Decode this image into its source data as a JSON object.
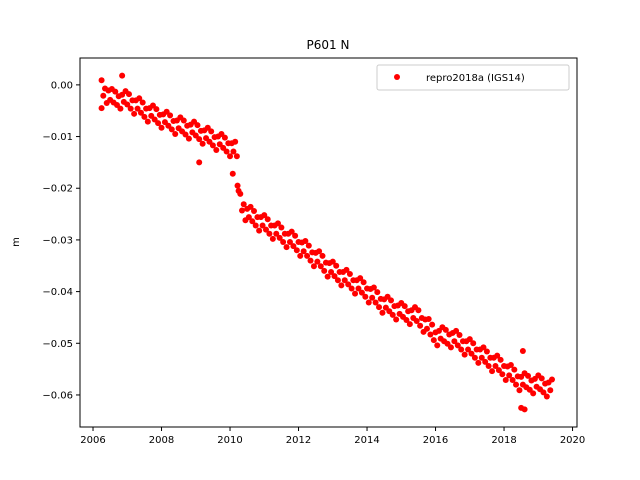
{
  "chart_data": {
    "type": "scatter",
    "title": "P601 N",
    "xlabel": "",
    "ylabel": "m",
    "xlim": [
      2005.62,
      2020.13
    ],
    "ylim": [
      -0.0662,
      0.0052
    ],
    "xticks": [
      2006,
      2008,
      2010,
      2012,
      2014,
      2016,
      2018,
      2020
    ],
    "xtick_labels": [
      "2006",
      "2008",
      "2010",
      "2012",
      "2014",
      "2016",
      "2018",
      "2020"
    ],
    "yticks": [
      0.0,
      -0.01,
      -0.02,
      -0.03,
      -0.04,
      -0.05,
      -0.06
    ],
    "ytick_labels": [
      "0.00",
      "−0.01",
      "−0.02",
      "−0.03",
      "−0.04",
      "−0.05",
      "−0.06"
    ],
    "grid": false,
    "legend": {
      "placement": "top-right",
      "entries": [
        "repro2018a (IGS14)"
      ]
    },
    "series": [
      {
        "name": "repro2018a (IGS14)",
        "color": "#ff0000",
        "marker": "circle",
        "points": [
          [
            2006.25,
            0.0009
          ],
          [
            2006.3,
            -0.0021
          ],
          [
            2006.35,
            -0.0007
          ],
          [
            2006.4,
            -0.0035
          ],
          [
            2006.45,
            -0.0011
          ],
          [
            2006.5,
            -0.0029
          ],
          [
            2006.55,
            -0.0008
          ],
          [
            2006.6,
            -0.0034
          ],
          [
            2006.65,
            -0.0013
          ],
          [
            2006.7,
            -0.0039
          ],
          [
            2006.75,
            -0.0022
          ],
          [
            2006.8,
            -0.0046
          ],
          [
            2006.85,
            -0.0019
          ],
          [
            2006.9,
            -0.0033
          ],
          [
            2006.95,
            -0.0012
          ],
          [
            2007.0,
            -0.0038
          ],
          [
            2007.05,
            -0.0018
          ],
          [
            2007.1,
            -0.0046
          ],
          [
            2007.15,
            -0.003
          ],
          [
            2007.2,
            -0.0056
          ],
          [
            2007.25,
            -0.003
          ],
          [
            2007.3,
            -0.0046
          ],
          [
            2007.35,
            -0.0026
          ],
          [
            2007.4,
            -0.0054
          ],
          [
            2007.45,
            -0.0034
          ],
          [
            2007.5,
            -0.0062
          ],
          [
            2007.55,
            -0.0046
          ],
          [
            2007.6,
            -0.0071
          ],
          [
            2007.65,
            -0.0045
          ],
          [
            2007.7,
            -0.006
          ],
          [
            2007.75,
            -0.004
          ],
          [
            2007.8,
            -0.0067
          ],
          [
            2007.85,
            -0.0047
          ],
          [
            2007.9,
            -0.0074
          ],
          [
            2007.95,
            -0.0058
          ],
          [
            2008.0,
            -0.0083
          ],
          [
            2008.05,
            -0.0057
          ],
          [
            2008.1,
            -0.0072
          ],
          [
            2008.15,
            -0.0052
          ],
          [
            2008.2,
            -0.0079
          ],
          [
            2008.25,
            -0.0059
          ],
          [
            2008.3,
            -0.0086
          ],
          [
            2008.35,
            -0.007
          ],
          [
            2008.4,
            -0.0095
          ],
          [
            2008.45,
            -0.0069
          ],
          [
            2008.5,
            -0.0084
          ],
          [
            2008.55,
            -0.0063
          ],
          [
            2008.6,
            -0.009
          ],
          [
            2008.65,
            -0.0069
          ],
          [
            2008.7,
            -0.0096
          ],
          [
            2008.75,
            -0.0079
          ],
          [
            2008.8,
            -0.0104
          ],
          [
            2008.85,
            -0.0077
          ],
          [
            2008.9,
            -0.0092
          ],
          [
            2008.95,
            -0.0071
          ],
          [
            2009.0,
            -0.0098
          ],
          [
            2009.05,
            -0.0078
          ],
          [
            2009.1,
            -0.0105
          ],
          [
            2009.15,
            -0.0089
          ],
          [
            2009.2,
            -0.0114
          ],
          [
            2009.25,
            -0.0088
          ],
          [
            2009.3,
            -0.0103
          ],
          [
            2009.35,
            -0.0083
          ],
          [
            2009.4,
            -0.011
          ],
          [
            2009.45,
            -0.009
          ],
          [
            2009.5,
            -0.0117
          ],
          [
            2009.55,
            -0.0101
          ],
          [
            2009.6,
            -0.0126
          ],
          [
            2009.65,
            -0.01
          ],
          [
            2009.7,
            -0.0115
          ],
          [
            2009.75,
            -0.0095
          ],
          [
            2009.8,
            -0.0122
          ],
          [
            2009.85,
            -0.0102
          ],
          [
            2009.9,
            -0.0129
          ],
          [
            2009.95,
            -0.0113
          ],
          [
            2010.0,
            -0.0138
          ],
          [
            2010.05,
            -0.0113
          ],
          [
            2010.1,
            -0.0129
          ],
          [
            2010.15,
            -0.011
          ],
          [
            2010.2,
            -0.0138
          ],
          [
            2010.08,
            -0.0172
          ],
          [
            2010.22,
            -0.0195
          ],
          [
            2010.25,
            -0.0205
          ],
          [
            2010.3,
            -0.0211
          ],
          [
            2010.35,
            -0.0243
          ],
          [
            2010.4,
            -0.0231
          ],
          [
            2010.45,
            -0.0262
          ],
          [
            2010.5,
            -0.024
          ],
          [
            2010.55,
            -0.0256
          ],
          [
            2010.6,
            -0.0236
          ],
          [
            2010.65,
            -0.0264
          ],
          [
            2010.7,
            -0.0244
          ],
          [
            2010.75,
            -0.0272
          ],
          [
            2010.8,
            -0.0256
          ],
          [
            2010.85,
            -0.0282
          ],
          [
            2010.9,
            -0.0256
          ],
          [
            2010.95,
            -0.0272
          ],
          [
            2011.0,
            -0.0252
          ],
          [
            2011.05,
            -0.028
          ],
          [
            2011.1,
            -0.026
          ],
          [
            2011.15,
            -0.0288
          ],
          [
            2011.2,
            -0.0272
          ],
          [
            2011.25,
            -0.0298
          ],
          [
            2011.3,
            -0.0272
          ],
          [
            2011.35,
            -0.0288
          ],
          [
            2011.4,
            -0.0268
          ],
          [
            2011.45,
            -0.0296
          ],
          [
            2011.5,
            -0.0276
          ],
          [
            2011.55,
            -0.0304
          ],
          [
            2011.6,
            -0.0288
          ],
          [
            2011.65,
            -0.0314
          ],
          [
            2011.7,
            -0.0288
          ],
          [
            2011.75,
            -0.0304
          ],
          [
            2011.8,
            -0.0284
          ],
          [
            2011.85,
            -0.0312
          ],
          [
            2011.9,
            -0.0292
          ],
          [
            2011.95,
            -0.032
          ],
          [
            2012.0,
            -0.0304
          ],
          [
            2012.05,
            -0.0331
          ],
          [
            2012.1,
            -0.0305
          ],
          [
            2012.15,
            -0.0322
          ],
          [
            2012.2,
            -0.0302
          ],
          [
            2012.25,
            -0.0331
          ],
          [
            2012.3,
            -0.0311
          ],
          [
            2012.35,
            -0.034
          ],
          [
            2012.4,
            -0.0324
          ],
          [
            2012.45,
            -0.0351
          ],
          [
            2012.5,
            -0.0325
          ],
          [
            2012.55,
            -0.0342
          ],
          [
            2012.6,
            -0.0322
          ],
          [
            2012.65,
            -0.0351
          ],
          [
            2012.7,
            -0.0331
          ],
          [
            2012.75,
            -0.036
          ],
          [
            2012.8,
            -0.0344
          ],
          [
            2012.85,
            -0.0371
          ],
          [
            2012.9,
            -0.0345
          ],
          [
            2012.95,
            -0.0362
          ],
          [
            2013.0,
            -0.0342
          ],
          [
            2013.05,
            -0.037
          ],
          [
            2013.1,
            -0.035
          ],
          [
            2013.15,
            -0.0378
          ],
          [
            2013.2,
            -0.0362
          ],
          [
            2013.25,
            -0.0388
          ],
          [
            2013.3,
            -0.0362
          ],
          [
            2013.35,
            -0.0378
          ],
          [
            2013.4,
            -0.0358
          ],
          [
            2013.45,
            -0.0386
          ],
          [
            2013.5,
            -0.0366
          ],
          [
            2013.55,
            -0.0394
          ],
          [
            2013.6,
            -0.0378
          ],
          [
            2013.65,
            -0.0404
          ],
          [
            2013.7,
            -0.0378
          ],
          [
            2013.75,
            -0.0394
          ],
          [
            2013.8,
            -0.0374
          ],
          [
            2013.85,
            -0.0402
          ],
          [
            2013.9,
            -0.0382
          ],
          [
            2013.95,
            -0.041
          ],
          [
            2014.0,
            -0.0394
          ],
          [
            2014.05,
            -0.0421
          ],
          [
            2014.1,
            -0.0395
          ],
          [
            2014.15,
            -0.0412
          ],
          [
            2014.2,
            -0.0392
          ],
          [
            2014.25,
            -0.0421
          ],
          [
            2014.3,
            -0.0401
          ],
          [
            2014.35,
            -0.043
          ],
          [
            2014.4,
            -0.0414
          ],
          [
            2014.45,
            -0.0441
          ],
          [
            2014.5,
            -0.0415
          ],
          [
            2014.55,
            -0.0431
          ],
          [
            2014.6,
            -0.041
          ],
          [
            2014.65,
            -0.0438
          ],
          [
            2014.7,
            -0.0417
          ],
          [
            2014.75,
            -0.0445
          ],
          [
            2014.8,
            -0.0428
          ],
          [
            2014.85,
            -0.0454
          ],
          [
            2014.9,
            -0.0427
          ],
          [
            2014.95,
            -0.0443
          ],
          [
            2015.0,
            -0.0422
          ],
          [
            2015.05,
            -0.0449
          ],
          [
            2015.1,
            -0.0428
          ],
          [
            2015.15,
            -0.0455
          ],
          [
            2015.2,
            -0.0438
          ],
          [
            2015.25,
            -0.0463
          ],
          [
            2015.3,
            -0.0436
          ],
          [
            2015.35,
            -0.0451
          ],
          [
            2015.4,
            -0.043
          ],
          [
            2015.45,
            -0.0457
          ],
          [
            2015.5,
            -0.0436
          ],
          [
            2015.55,
            -0.0466
          ],
          [
            2015.6,
            -0.0451
          ],
          [
            2015.65,
            -0.0478
          ],
          [
            2015.7,
            -0.0454
          ],
          [
            2015.75,
            -0.0472
          ],
          [
            2015.8,
            -0.0453
          ],
          [
            2015.85,
            -0.0483
          ],
          [
            2015.9,
            -0.0464
          ],
          [
            2015.95,
            -0.0494
          ],
          [
            2016.0,
            -0.0479
          ],
          [
            2016.05,
            -0.0504
          ],
          [
            2016.1,
            -0.0476
          ],
          [
            2016.15,
            -0.0491
          ],
          [
            2016.2,
            -0.0469
          ],
          [
            2016.25,
            -0.0496
          ],
          [
            2016.3,
            -0.0474
          ],
          [
            2016.35,
            -0.0501
          ],
          [
            2016.4,
            -0.0483
          ],
          [
            2016.45,
            -0.0508
          ],
          [
            2016.5,
            -0.048
          ],
          [
            2016.55,
            -0.0496
          ],
          [
            2016.6,
            -0.0476
          ],
          [
            2016.65,
            -0.0504
          ],
          [
            2016.7,
            -0.0484
          ],
          [
            2016.75,
            -0.0512
          ],
          [
            2016.8,
            -0.0496
          ],
          [
            2016.85,
            -0.0522
          ],
          [
            2016.9,
            -0.0496
          ],
          [
            2016.95,
            -0.0512
          ],
          [
            2017.0,
            -0.0492
          ],
          [
            2017.05,
            -0.052
          ],
          [
            2017.1,
            -0.05
          ],
          [
            2017.15,
            -0.0528
          ],
          [
            2017.2,
            -0.0512
          ],
          [
            2017.25,
            -0.0538
          ],
          [
            2017.3,
            -0.0512
          ],
          [
            2017.35,
            -0.0528
          ],
          [
            2017.4,
            -0.0508
          ],
          [
            2017.45,
            -0.0536
          ],
          [
            2017.5,
            -0.0516
          ],
          [
            2017.55,
            -0.0544
          ],
          [
            2017.6,
            -0.0528
          ],
          [
            2017.65,
            -0.0554
          ],
          [
            2017.7,
            -0.0528
          ],
          [
            2017.75,
            -0.0544
          ],
          [
            2017.8,
            -0.0524
          ],
          [
            2017.85,
            -0.0552
          ],
          [
            2017.9,
            -0.0532
          ],
          [
            2017.95,
            -0.056
          ],
          [
            2018.0,
            -0.0544
          ],
          [
            2018.05,
            -0.0571
          ],
          [
            2018.1,
            -0.0545
          ],
          [
            2018.15,
            -0.0562
          ],
          [
            2018.2,
            -0.0542
          ],
          [
            2018.25,
            -0.0571
          ],
          [
            2018.3,
            -0.0551
          ],
          [
            2018.35,
            -0.058
          ],
          [
            2018.4,
            -0.0564
          ],
          [
            2018.45,
            -0.0591
          ],
          [
            2018.5,
            -0.0565
          ],
          [
            2018.55,
            -0.058
          ],
          [
            2018.6,
            -0.0558
          ],
          [
            2018.65,
            -0.0585
          ],
          [
            2018.7,
            -0.0563
          ],
          [
            2018.75,
            -0.059
          ],
          [
            2018.8,
            -0.0572
          ],
          [
            2018.85,
            -0.0597
          ],
          [
            2018.9,
            -0.0569
          ],
          [
            2018.95,
            -0.0584
          ],
          [
            2019.0,
            -0.0562
          ],
          [
            2019.05,
            -0.0589
          ],
          [
            2019.1,
            -0.0568
          ],
          [
            2019.15,
            -0.0595
          ],
          [
            2019.2,
            -0.0578
          ],
          [
            2019.25,
            -0.0603
          ],
          [
            2019.3,
            -0.0576
          ],
          [
            2019.35,
            -0.0591
          ],
          [
            2019.4,
            -0.057
          ],
          [
            2006.25,
            -0.0045
          ],
          [
            2006.85,
            0.0018
          ],
          [
            2009.1,
            -0.015
          ],
          [
            2018.5,
            -0.0625
          ],
          [
            2018.6,
            -0.0628
          ],
          [
            2018.55,
            -0.0515
          ]
        ]
      }
    ]
  }
}
